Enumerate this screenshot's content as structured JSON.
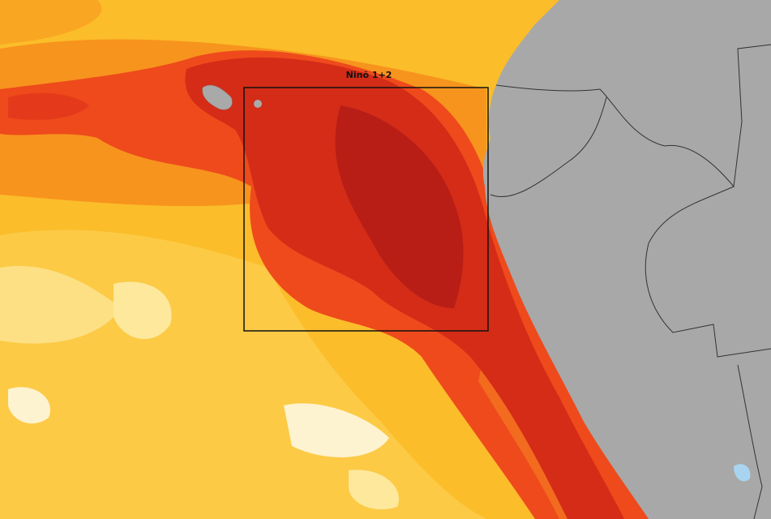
{
  "map": {
    "region_label": "Ninõ 1+2"
  }
}
